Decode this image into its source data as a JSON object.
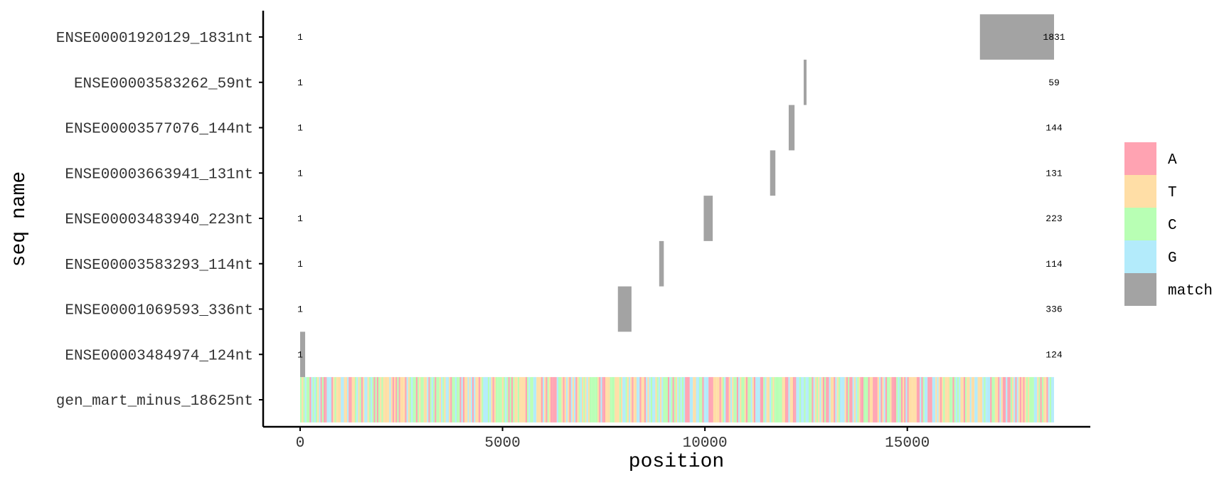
{
  "chart_data": {
    "type": "alignment",
    "xlabel": "position",
    "ylabel": "seq name",
    "xlim": [
      -900,
      19600
    ],
    "xticks": [
      0,
      5000,
      10000,
      15000
    ],
    "xtick_labels": [
      "0",
      "5000",
      "10000",
      "15000"
    ],
    "legend": {
      "position": "right",
      "items": [
        {
          "label": "A",
          "color": "#ffa3b2"
        },
        {
          "label": "T",
          "color": "#ffdea6"
        },
        {
          "label": "C",
          "color": "#b8ffb4"
        },
        {
          "label": "G",
          "color": "#b3ebfb"
        },
        {
          "label": "match",
          "color": "#a3a3a3"
        }
      ]
    },
    "reference": {
      "name": "gen_mart_minus_18625nt",
      "length": 18625,
      "composition": [
        "A",
        "T",
        "C",
        "G"
      ]
    },
    "sequences": [
      {
        "name": "ENSE00001920129_1831nt",
        "start_label": "1",
        "end_label": "1831",
        "match_start": 16794,
        "match_end": 18625
      },
      {
        "name": "ENSE00003583262_59nt",
        "start_label": "1",
        "end_label": "59",
        "match_start": 12440,
        "match_end": 12499
      },
      {
        "name": "ENSE00003577076_144nt",
        "start_label": "1",
        "end_label": "144",
        "match_start": 12070,
        "match_end": 12214
      },
      {
        "name": "ENSE00003663941_131nt",
        "start_label": "1",
        "end_label": "131",
        "match_start": 11610,
        "match_end": 11741
      },
      {
        "name": "ENSE00003483940_223nt",
        "start_label": "1",
        "end_label": "223",
        "match_start": 9970,
        "match_end": 10193
      },
      {
        "name": "ENSE00003583293_114nt",
        "start_label": "1",
        "end_label": "114",
        "match_start": 8870,
        "match_end": 8984
      },
      {
        "name": "ENSE00001069593_336nt",
        "start_label": "1",
        "end_label": "336",
        "match_start": 7850,
        "match_end": 8186
      },
      {
        "name": "ENSE00003484974_124nt",
        "start_label": "1",
        "end_label": "124",
        "match_start": 0,
        "match_end": 124
      }
    ]
  }
}
